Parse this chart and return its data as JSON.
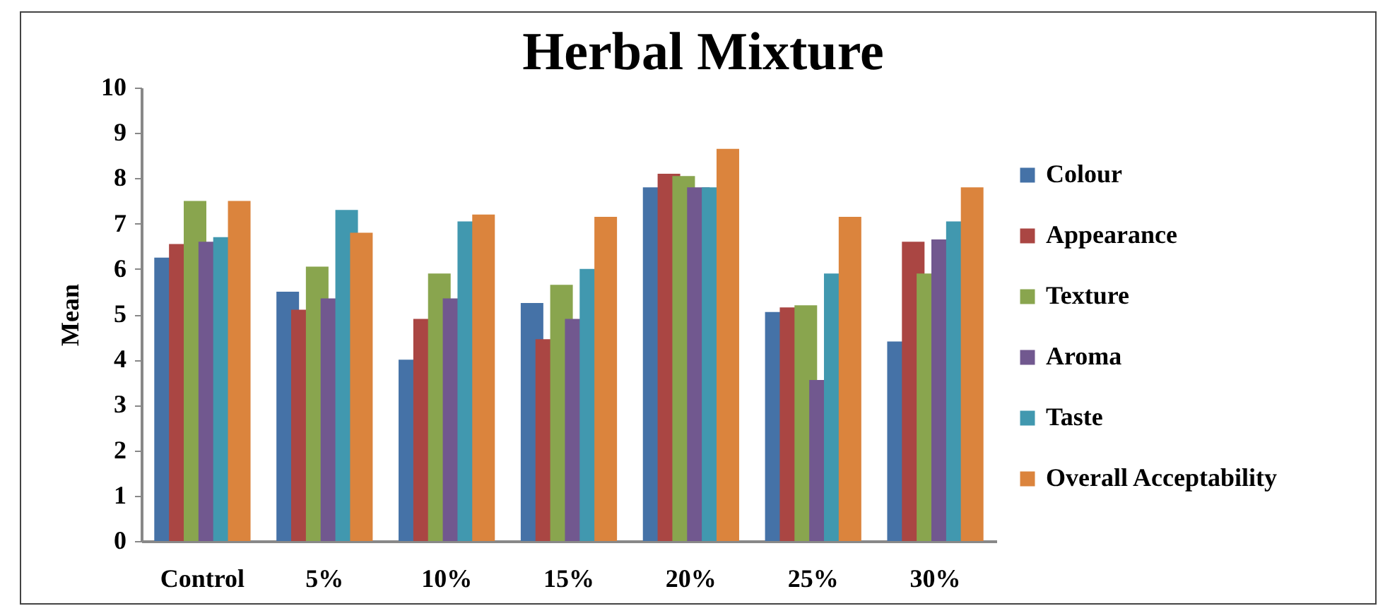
{
  "chart_data": {
    "type": "bar",
    "title": "Herbal Mixture",
    "ylabel": "Mean",
    "categories": [
      "Control",
      "5%",
      "10%",
      "15%",
      "20%",
      "25%",
      "30%"
    ],
    "series": [
      {
        "name": "Colour",
        "color": "#4572a7",
        "values": [
          6.25,
          5.5,
          4.0,
          5.25,
          7.8,
          5.05,
          4.4
        ]
      },
      {
        "name": "Appearance",
        "color": "#aa4643",
        "values": [
          6.55,
          5.1,
          4.9,
          4.45,
          8.1,
          5.15,
          6.6
        ]
      },
      {
        "name": "Texture",
        "color": "#89a54e",
        "values": [
          7.5,
          6.05,
          5.9,
          5.65,
          8.05,
          5.2,
          5.9
        ]
      },
      {
        "name": "Aroma",
        "color": "#71588f",
        "values": [
          6.6,
          5.35,
          5.35,
          4.9,
          7.8,
          3.55,
          6.65
        ]
      },
      {
        "name": "Taste",
        "color": "#4198af",
        "values": [
          6.7,
          7.3,
          7.05,
          6.0,
          7.8,
          5.9,
          7.05
        ]
      },
      {
        "name": "Overall Acceptability",
        "color": "#db843d",
        "values": [
          7.5,
          6.8,
          7.2,
          7.15,
          8.65,
          7.15,
          7.8
        ]
      }
    ],
    "ylim": [
      0,
      10
    ],
    "yticks": [
      0,
      1,
      2,
      3,
      4,
      5,
      6,
      7,
      8,
      9,
      10
    ],
    "legend": "right"
  }
}
